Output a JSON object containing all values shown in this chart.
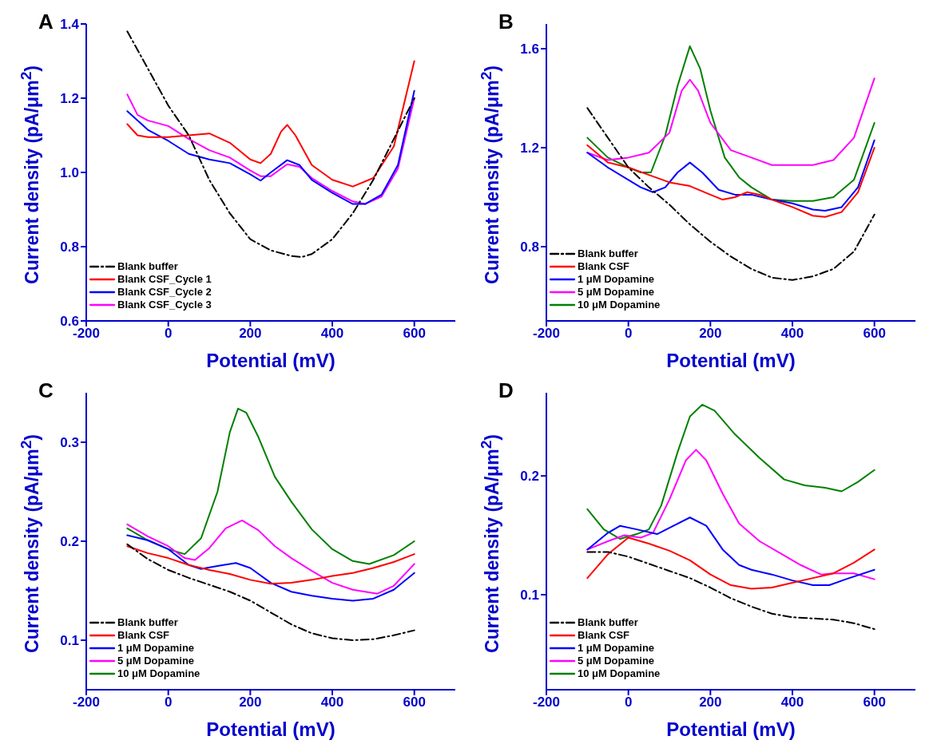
{
  "chart_data": [
    {
      "type": "line",
      "title": "A",
      "xlabel": "Potential (mV)",
      "ylabel": "Current density (pA/μm$^{2}$)",
      "xlim": [
        -200,
        700
      ],
      "xticks": [
        -200,
        0,
        200,
        400,
        600
      ],
      "ylim": [
        0.6,
        1.4
      ],
      "yticks": [
        0.6,
        0.8,
        {
          "value": 1,
          "label": "1.0"
        },
        1.2,
        1.4
      ],
      "legend": "bottom left",
      "grid": false,
      "series": [
        {
          "name": "Blank buffer",
          "color": "#000000",
          "line_style": "dashed",
          "x": [
            -100,
            -50,
            0,
            50,
            100,
            150,
            200,
            250,
            300,
            325,
            350,
            400,
            450,
            500,
            550,
            600
          ],
          "values": [
            1.38,
            1.28,
            1.18,
            1.1,
            0.98,
            0.89,
            0.82,
            0.79,
            0.775,
            0.772,
            0.78,
            0.82,
            0.89,
            0.98,
            1.09,
            1.2
          ]
        },
        {
          "name": "Blank CSF_Cycle 1",
          "color": "#ff0000",
          "line_style": "solid",
          "x": [
            -100,
            -75,
            -50,
            0,
            50,
            100,
            150,
            200,
            225,
            250,
            275,
            290,
            310,
            350,
            400,
            450,
            500,
            550,
            600
          ],
          "values": [
            1.13,
            1.1,
            1.095,
            1.095,
            1.1,
            1.105,
            1.08,
            1.035,
            1.025,
            1.05,
            1.11,
            1.128,
            1.1,
            1.02,
            0.98,
            0.962,
            0.985,
            1.07,
            1.3
          ]
        },
        {
          "name": "Blank CSF_Cycle 2",
          "color": "#0000ff",
          "line_style": "solid",
          "x": [
            -100,
            -50,
            0,
            50,
            100,
            150,
            200,
            225,
            250,
            290,
            320,
            350,
            400,
            450,
            480,
            520,
            560,
            600
          ],
          "values": [
            1.165,
            1.115,
            1.085,
            1.05,
            1.035,
            1.025,
            0.995,
            0.978,
            1,
            1.033,
            1.02,
            0.98,
            0.945,
            0.915,
            0.915,
            0.94,
            1.02,
            1.22
          ]
        },
        {
          "name": "Blank CSF_Cycle 3",
          "color": "#ff00ff",
          "line_style": "solid",
          "x": [
            -100,
            -75,
            -50,
            0,
            50,
            100,
            150,
            200,
            225,
            250,
            290,
            320,
            350,
            400,
            450,
            480,
            520,
            560,
            600
          ],
          "values": [
            1.21,
            1.155,
            1.14,
            1.125,
            1.09,
            1.06,
            1.04,
            1.005,
            0.99,
            0.99,
            1.022,
            1.015,
            0.985,
            0.95,
            0.922,
            0.915,
            0.935,
            1.01,
            1.2
          ]
        }
      ]
    },
    {
      "type": "line",
      "title": "B",
      "xlabel": "Potential (mV)",
      "ylabel": "Current density (pA/μm$^{2}$)",
      "xlim": [
        -200,
        700
      ],
      "xticks": [
        -200,
        0,
        200,
        400,
        600
      ],
      "ylim": [
        0.5,
        1.7
      ],
      "yticks": [
        0.8,
        1.2,
        1.6
      ],
      "legend": "bottom left",
      "grid": false,
      "series": [
        {
          "name": "Blank buffer",
          "color": "#000000",
          "line_style": "dashed",
          "x": [
            -100,
            -50,
            0,
            50,
            100,
            150,
            200,
            250,
            300,
            350,
            400,
            450,
            500,
            550,
            600
          ],
          "values": [
            1.36,
            1.24,
            1.12,
            1.04,
            0.97,
            0.89,
            0.82,
            0.76,
            0.71,
            0.675,
            0.665,
            0.68,
            0.71,
            0.78,
            0.93
          ]
        },
        {
          "name": "Blank CSF",
          "color": "#ff0000",
          "line_style": "solid",
          "x": [
            -100,
            -50,
            0,
            50,
            100,
            150,
            200,
            230,
            260,
            290,
            320,
            350,
            400,
            450,
            480,
            520,
            560,
            600
          ],
          "values": [
            1.21,
            1.14,
            1.12,
            1.09,
            1.06,
            1.045,
            1.01,
            0.99,
            1,
            1.02,
            1.01,
            0.99,
            0.96,
            0.925,
            0.92,
            0.94,
            1.02,
            1.2
          ]
        },
        {
          "name": "1 μM Dopamine",
          "color": "#0000ff",
          "line_style": "solid",
          "x": [
            -100,
            -50,
            0,
            30,
            60,
            90,
            120,
            150,
            180,
            220,
            260,
            300,
            350,
            400,
            450,
            480,
            520,
            560,
            600
          ],
          "values": [
            1.18,
            1.12,
            1.07,
            1.04,
            1.02,
            1.04,
            1.1,
            1.14,
            1.1,
            1.03,
            1.01,
            1.01,
            0.99,
            0.975,
            0.95,
            0.945,
            0.96,
            1.04,
            1.23
          ]
        },
        {
          "name": "5 μM Dopamine",
          "color": "#ff00ff",
          "line_style": "solid",
          "x": [
            -100,
            -50,
            0,
            50,
            100,
            130,
            150,
            170,
            200,
            250,
            300,
            350,
            400,
            450,
            500,
            550,
            600
          ],
          "values": [
            1.18,
            1.15,
            1.16,
            1.18,
            1.26,
            1.43,
            1.475,
            1.43,
            1.3,
            1.19,
            1.16,
            1.13,
            1.13,
            1.13,
            1.15,
            1.24,
            1.48
          ]
        },
        {
          "name": "10 μM Dopamine",
          "color": "#008000",
          "line_style": "solid",
          "x": [
            -100,
            -50,
            0,
            30,
            55,
            90,
            120,
            150,
            175,
            200,
            235,
            270,
            300,
            350,
            400,
            450,
            500,
            550,
            600
          ],
          "values": [
            1.24,
            1.16,
            1.12,
            1.1,
            1.1,
            1.25,
            1.45,
            1.61,
            1.52,
            1.35,
            1.16,
            1.08,
            1.04,
            0.99,
            0.985,
            0.985,
            1,
            1.07,
            1.3
          ]
        }
      ]
    },
    {
      "type": "line",
      "title": "C",
      "xlabel": "Potential (mV)",
      "ylabel": "Current density (pA/μm$^{2}$)",
      "xlim": [
        -200,
        700
      ],
      "xticks": [
        -200,
        0,
        200,
        400,
        600
      ],
      "ylim": [
        0.05,
        0.35
      ],
      "yticks": [
        0.1,
        0.2,
        0.3
      ],
      "legend": "bottom left",
      "grid": false,
      "series": [
        {
          "name": "Blank buffer",
          "color": "#000000",
          "line_style": "dashed",
          "x": [
            -100,
            -50,
            0,
            50,
            100,
            150,
            200,
            250,
            300,
            350,
            400,
            450,
            500,
            550,
            600
          ],
          "values": [
            0.197,
            0.182,
            0.171,
            0.163,
            0.156,
            0.149,
            0.14,
            0.128,
            0.116,
            0.107,
            0.102,
            0.1,
            0.101,
            0.105,
            0.11
          ]
        },
        {
          "name": "Blank CSF",
          "color": "#ff0000",
          "line_style": "solid",
          "x": [
            -100,
            -50,
            0,
            50,
            100,
            150,
            200,
            250,
            300,
            350,
            400,
            450,
            500,
            550,
            600
          ],
          "values": [
            0.195,
            0.188,
            0.183,
            0.176,
            0.171,
            0.167,
            0.161,
            0.157,
            0.158,
            0.161,
            0.165,
            0.168,
            0.173,
            0.179,
            0.187
          ]
        },
        {
          "name": "1 μM Dopamine",
          "color": "#0000ff",
          "line_style": "solid",
          "x": [
            -100,
            -50,
            0,
            50,
            80,
            120,
            165,
            200,
            250,
            300,
            350,
            400,
            450,
            500,
            550,
            600
          ],
          "values": [
            0.206,
            0.201,
            0.192,
            0.176,
            0.172,
            0.175,
            0.178,
            0.173,
            0.158,
            0.149,
            0.145,
            0.142,
            0.14,
            0.142,
            0.151,
            0.168
          ]
        },
        {
          "name": "5 μM Dopamine",
          "color": "#ff00ff",
          "line_style": "solid",
          "x": [
            -100,
            -50,
            0,
            40,
            65,
            100,
            140,
            180,
            220,
            260,
            300,
            350,
            400,
            450,
            510,
            550,
            600
          ],
          "values": [
            0.217,
            0.205,
            0.195,
            0.183,
            0.181,
            0.193,
            0.213,
            0.221,
            0.211,
            0.195,
            0.183,
            0.17,
            0.158,
            0.151,
            0.147,
            0.155,
            0.177
          ]
        },
        {
          "name": "10 μM Dopamine",
          "color": "#008000",
          "line_style": "solid",
          "x": [
            -100,
            -50,
            0,
            40,
            80,
            120,
            150,
            170,
            190,
            220,
            260,
            300,
            350,
            400,
            450,
            490,
            550,
            600
          ],
          "values": [
            0.213,
            0.201,
            0.192,
            0.187,
            0.203,
            0.25,
            0.31,
            0.334,
            0.33,
            0.305,
            0.265,
            0.24,
            0.212,
            0.192,
            0.18,
            0.177,
            0.186,
            0.2
          ]
        }
      ]
    },
    {
      "type": "line",
      "title": "D",
      "xlabel": "Potential (mV)",
      "ylabel": "Current density (pA/μm$^{2}$)",
      "xlim": [
        -200,
        700
      ],
      "xticks": [
        -200,
        0,
        200,
        400,
        600
      ],
      "ylim": [
        0.02,
        0.27
      ],
      "yticks": [
        0.1,
        0.2
      ],
      "legend": "bottom left",
      "grid": false,
      "series": [
        {
          "name": "Blank buffer",
          "color": "#000000",
          "line_style": "dashed",
          "x": [
            -100,
            -50,
            0,
            50,
            100,
            150,
            200,
            250,
            300,
            350,
            400,
            450,
            500,
            550,
            600
          ],
          "values": [
            0.136,
            0.136,
            0.132,
            0.126,
            0.12,
            0.114,
            0.106,
            0.097,
            0.09,
            0.084,
            0.081,
            0.08,
            0.079,
            0.076,
            0.071
          ]
        },
        {
          "name": "Blank CSF",
          "color": "#ff0000",
          "line_style": "solid",
          "x": [
            -100,
            -50,
            0,
            50,
            100,
            150,
            200,
            250,
            300,
            350,
            400,
            450,
            500,
            550,
            600
          ],
          "values": [
            0.114,
            0.134,
            0.148,
            0.143,
            0.137,
            0.129,
            0.117,
            0.108,
            0.105,
            0.106,
            0.11,
            0.114,
            0.118,
            0.127,
            0.138
          ]
        },
        {
          "name": "1 μM Dopamine",
          "color": "#0000ff",
          "line_style": "solid",
          "x": [
            -100,
            -50,
            -20,
            20,
            70,
            110,
            150,
            190,
            230,
            270,
            300,
            350,
            400,
            450,
            490,
            530,
            600
          ],
          "values": [
            0.138,
            0.152,
            0.158,
            0.155,
            0.151,
            0.158,
            0.165,
            0.158,
            0.138,
            0.125,
            0.121,
            0.117,
            0.112,
            0.108,
            0.108,
            0.113,
            0.121
          ]
        },
        {
          "name": "5 μM Dopamine",
          "color": "#ff00ff",
          "line_style": "solid",
          "x": [
            -100,
            -50,
            -10,
            30,
            60,
            100,
            140,
            165,
            190,
            230,
            270,
            320,
            370,
            420,
            470,
            500,
            550,
            600
          ],
          "values": [
            0.138,
            0.145,
            0.15,
            0.148,
            0.152,
            0.18,
            0.213,
            0.222,
            0.213,
            0.185,
            0.16,
            0.145,
            0.135,
            0.125,
            0.117,
            0.118,
            0.118,
            0.113
          ]
        },
        {
          "name": "10 μM Dopamine",
          "color": "#008000",
          "line_style": "solid",
          "x": [
            -100,
            -60,
            -20,
            20,
            50,
            80,
            120,
            150,
            180,
            210,
            260,
            320,
            380,
            430,
            480,
            520,
            560,
            600
          ],
          "values": [
            0.172,
            0.155,
            0.147,
            0.151,
            0.155,
            0.175,
            0.22,
            0.25,
            0.26,
            0.255,
            0.235,
            0.215,
            0.197,
            0.192,
            0.19,
            0.187,
            0.195,
            0.205
          ]
        }
      ]
    }
  ]
}
